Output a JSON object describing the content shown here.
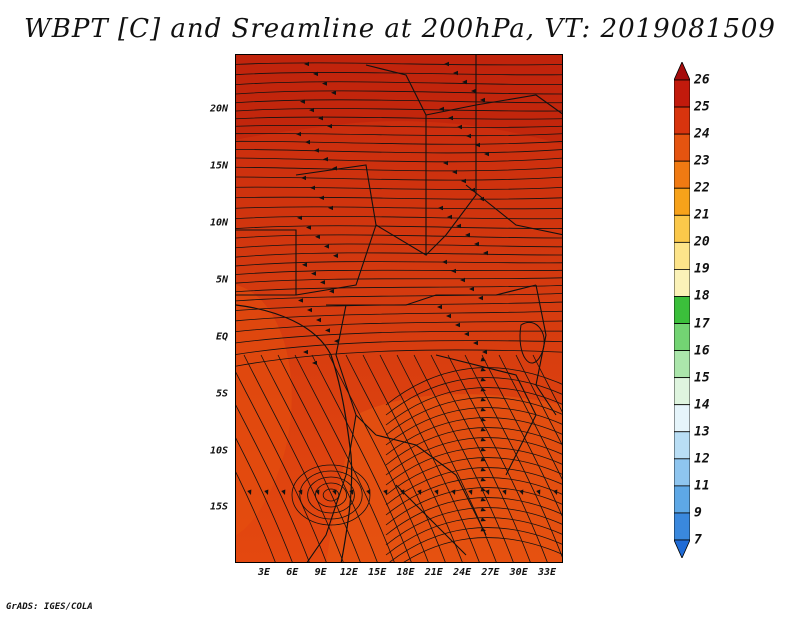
{
  "title": "WBPT [C] and Sreamline at 200hPa, VT: 2019081509",
  "footer": "GrADS: IGES/COLA",
  "map": {
    "lat_labels": [
      "20N",
      "15N",
      "10N",
      "5N",
      "EQ",
      "5S",
      "10S",
      "15S"
    ],
    "lon_labels": [
      "3E",
      "6E",
      "9E",
      "12E",
      "15E",
      "18E",
      "21E",
      "24E",
      "27E",
      "30E",
      "33E"
    ],
    "fill_color": "#d43a0f",
    "fill_color_north": "#c8280d",
    "fill_color_south": "#e4480f",
    "streamline_color": "#111111",
    "boundary_color": "#111111"
  },
  "colorbar": {
    "labels": [
      "26",
      "25",
      "24",
      "23",
      "22",
      "21",
      "20",
      "19",
      "18",
      "17",
      "16",
      "15",
      "14",
      "13",
      "12",
      "11",
      "9",
      "7"
    ],
    "colors": [
      "#a50c0c",
      "#c21a0c",
      "#d8340e",
      "#e55410",
      "#f07a12",
      "#f7a21a",
      "#fbc84a",
      "#fde48a",
      "#fbf2b8",
      "#3bbf3b",
      "#73d473",
      "#abe6ab",
      "#dff5df",
      "#e6f5fb",
      "#b9def5",
      "#8ec5ef",
      "#5ea8e6",
      "#3a88dd",
      "#1f6bd6"
    ]
  }
}
